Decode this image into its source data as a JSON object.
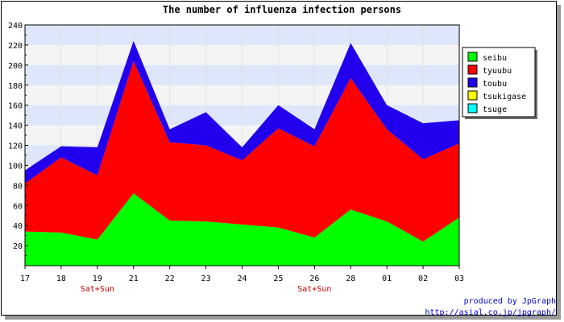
{
  "chart_data": {
    "type": "area",
    "stacked": true,
    "title": "The number of influenza infection persons",
    "categories": [
      "17",
      "18",
      "19",
      "21",
      "22",
      "23",
      "24",
      "25",
      "26",
      "28",
      "01",
      "02",
      "03"
    ],
    "category_annotations": [
      {
        "category": "19",
        "text": "Sat+Sun"
      },
      {
        "category": "26",
        "text": "Sat+Sun"
      }
    ],
    "series": [
      {
        "name": "seibu",
        "color": "#00ff00",
        "values": [
          34,
          33,
          26,
          72,
          45,
          44,
          41,
          38,
          28,
          56,
          44,
          24,
          48
        ]
      },
      {
        "name": "tyuubu",
        "color": "#ff0000",
        "values": [
          48,
          75,
          64,
          132,
          78,
          76,
          64,
          99,
          91,
          131,
          92,
          82,
          74
        ]
      },
      {
        "name": "toubu",
        "color": "#2200ee",
        "values": [
          13,
          11,
          28,
          20,
          13,
          33,
          13,
          23,
          17,
          35,
          24,
          36,
          23
        ]
      },
      {
        "name": "tsukigase",
        "color": "#ffff00",
        "values": [
          0,
          0,
          0,
          0,
          0,
          0,
          0,
          0,
          0,
          0,
          0,
          0,
          0
        ]
      },
      {
        "name": "tsuge",
        "color": "#00ffff",
        "values": [
          0,
          0,
          0,
          0,
          0,
          0,
          0,
          0,
          0,
          0,
          0,
          0,
          0
        ]
      }
    ],
    "ylim": [
      0,
      240
    ],
    "yticks": [
      20,
      40,
      60,
      80,
      100,
      120,
      140,
      160,
      180,
      200,
      220,
      240
    ],
    "grid": true,
    "band_colors": [
      "#f4f4f4",
      "#dde6fa"
    ],
    "legend_position": "right",
    "xlabel": "",
    "ylabel": ""
  },
  "credits": {
    "line1": "produced by JpGraph",
    "line2": "http://asial.co.jp/jpgraph/"
  }
}
